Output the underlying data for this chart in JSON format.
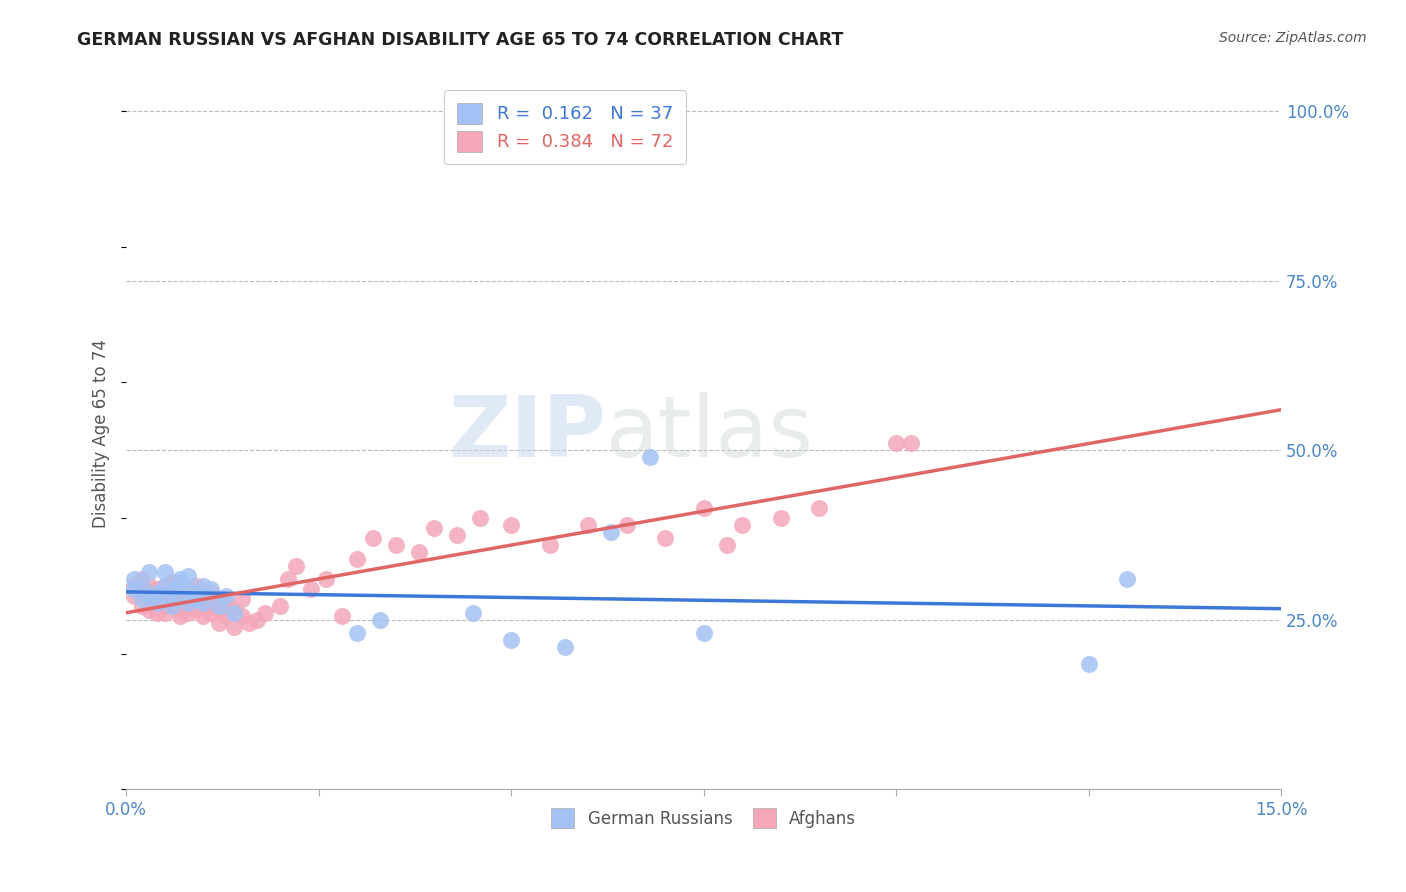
{
  "title": "GERMAN RUSSIAN VS AFGHAN DISABILITY AGE 65 TO 74 CORRELATION CHART",
  "source": "Source: ZipAtlas.com",
  "ylabel": "Disability Age 65 to 74",
  "xlim": [
    0.0,
    0.15
  ],
  "ylim": [
    0.0,
    1.05
  ],
  "xticks": [
    0.0,
    0.025,
    0.05,
    0.075,
    0.1,
    0.125,
    0.15
  ],
  "xticklabels": [
    "0.0%",
    "",
    "",
    "",
    "",
    "",
    "15.0%"
  ],
  "yticks_right": [
    0.25,
    0.5,
    0.75,
    1.0
  ],
  "ytick_right_labels": [
    "25.0%",
    "50.0%",
    "75.0%",
    "100.0%"
  ],
  "blue_scatter_color": "#a4c2f4",
  "pink_scatter_color": "#f4a7b9",
  "blue_line_color": "#3c78d8",
  "pink_line_color": "#e06666",
  "r_blue": 0.162,
  "n_blue": 37,
  "r_pink": 0.384,
  "n_pink": 72,
  "legend_label_blue": "German Russians",
  "legend_label_pink": "Afghans",
  "watermark_zip": "ZIP",
  "watermark_atlas": "atlas",
  "background_color": "#ffffff",
  "grid_color": "#bbbbbb",
  "blue_scatter_x": [
    0.001,
    0.001,
    0.002,
    0.002,
    0.003,
    0.003,
    0.004,
    0.004,
    0.005,
    0.005,
    0.005,
    0.006,
    0.006,
    0.007,
    0.007,
    0.007,
    0.008,
    0.008,
    0.008,
    0.009,
    0.009,
    0.01,
    0.01,
    0.011,
    0.012,
    0.013,
    0.014,
    0.03,
    0.033,
    0.045,
    0.05,
    0.057,
    0.063,
    0.068,
    0.075,
    0.125,
    0.13
  ],
  "blue_scatter_y": [
    0.295,
    0.31,
    0.28,
    0.3,
    0.285,
    0.32,
    0.29,
    0.275,
    0.3,
    0.285,
    0.32,
    0.295,
    0.27,
    0.305,
    0.285,
    0.31,
    0.275,
    0.295,
    0.315,
    0.29,
    0.28,
    0.3,
    0.275,
    0.295,
    0.27,
    0.285,
    0.26,
    0.23,
    0.25,
    0.26,
    0.22,
    0.21,
    0.38,
    0.49,
    0.23,
    0.185,
    0.31
  ],
  "pink_scatter_x": [
    0.001,
    0.001,
    0.002,
    0.002,
    0.002,
    0.003,
    0.003,
    0.003,
    0.004,
    0.004,
    0.004,
    0.005,
    0.005,
    0.005,
    0.006,
    0.006,
    0.006,
    0.006,
    0.007,
    0.007,
    0.007,
    0.007,
    0.008,
    0.008,
    0.008,
    0.008,
    0.009,
    0.009,
    0.009,
    0.01,
    0.01,
    0.01,
    0.011,
    0.011,
    0.011,
    0.012,
    0.012,
    0.012,
    0.013,
    0.013,
    0.014,
    0.014,
    0.015,
    0.015,
    0.016,
    0.017,
    0.018,
    0.02,
    0.021,
    0.022,
    0.024,
    0.026,
    0.028,
    0.03,
    0.032,
    0.035,
    0.038,
    0.04,
    0.043,
    0.046,
    0.05,
    0.055,
    0.06,
    0.065,
    0.07,
    0.075,
    0.078,
    0.08,
    0.085,
    0.09,
    0.1,
    0.102
  ],
  "pink_scatter_y": [
    0.285,
    0.3,
    0.27,
    0.29,
    0.31,
    0.265,
    0.28,
    0.3,
    0.26,
    0.285,
    0.295,
    0.27,
    0.3,
    0.26,
    0.285,
    0.27,
    0.305,
    0.275,
    0.28,
    0.265,
    0.295,
    0.255,
    0.27,
    0.29,
    0.26,
    0.275,
    0.285,
    0.265,
    0.3,
    0.255,
    0.275,
    0.285,
    0.26,
    0.29,
    0.27,
    0.245,
    0.265,
    0.28,
    0.255,
    0.275,
    0.24,
    0.265,
    0.255,
    0.28,
    0.245,
    0.25,
    0.26,
    0.27,
    0.31,
    0.33,
    0.295,
    0.31,
    0.255,
    0.34,
    0.37,
    0.36,
    0.35,
    0.385,
    0.375,
    0.4,
    0.39,
    0.36,
    0.39,
    0.39,
    0.37,
    0.415,
    0.36,
    0.39,
    0.4,
    0.415,
    0.51,
    0.51
  ]
}
